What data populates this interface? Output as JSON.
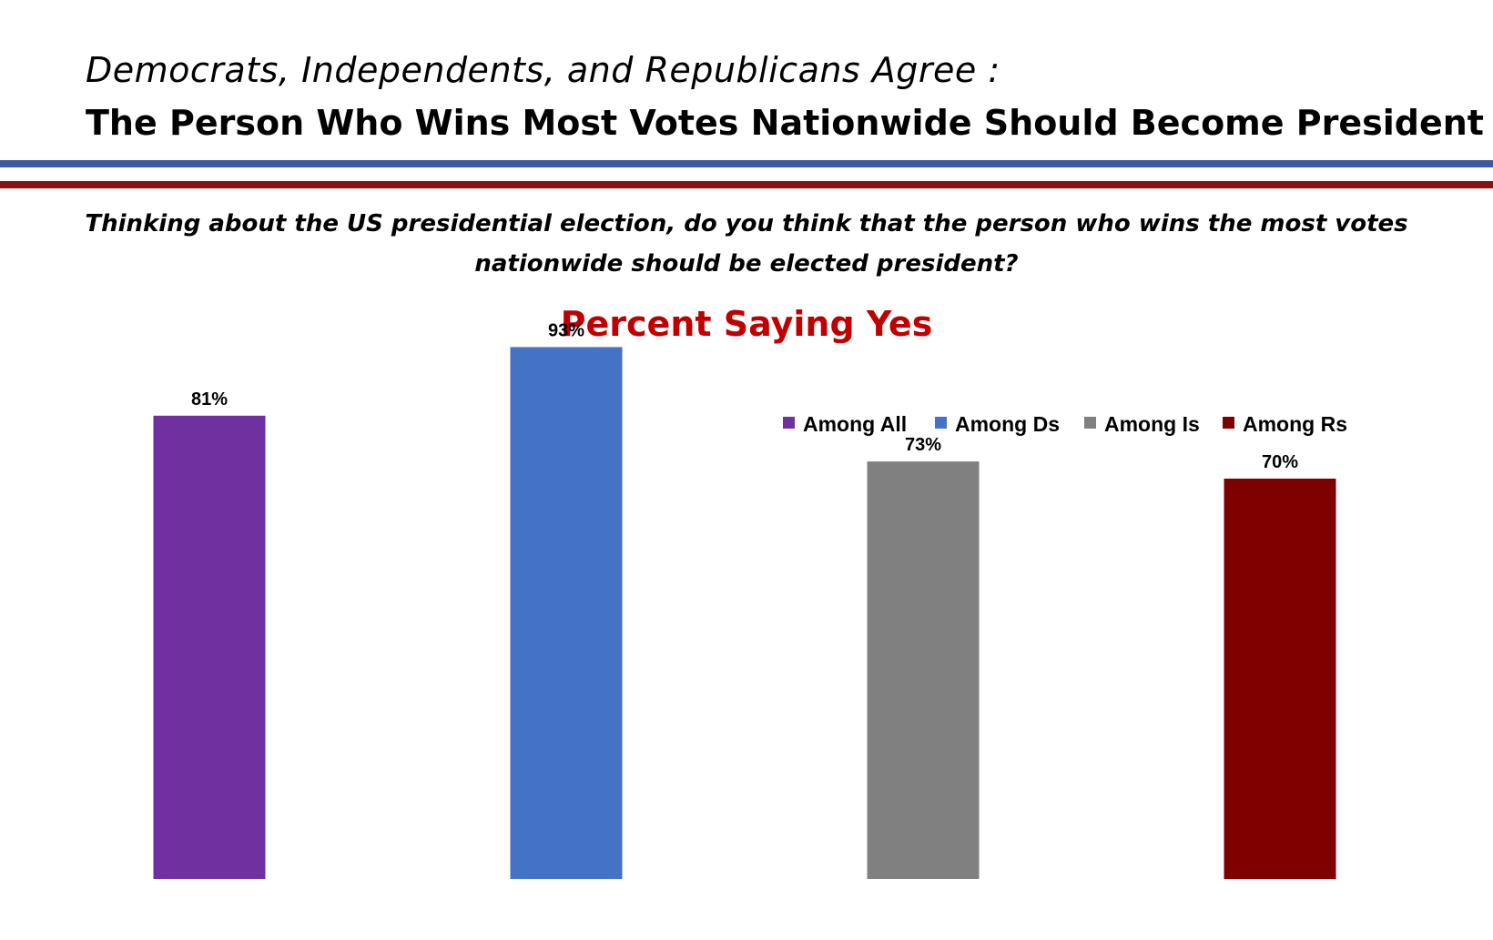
{
  "header": {
    "subtitle": "Democrats, Independents, and Republicans Agree :",
    "title": "The Person Who Wins Most Votes Nationwide Should Become President"
  },
  "question": "Thinking about the US presidential election, do you think that the person who wins the most votes nationwide should be elected president?",
  "colors": {
    "rule_blue": "#3b5aa0",
    "rule_red": "#8b1010",
    "chart_title": "#c00000"
  },
  "chart_data": {
    "type": "bar",
    "title": "Percent Saying Yes",
    "categories": [
      "Among All",
      "Among Ds",
      "Among Is",
      "Among Rs"
    ],
    "values": [
      81,
      93,
      73,
      70
    ],
    "value_labels": [
      "81%",
      "93%",
      "73%",
      "70%"
    ],
    "colors": [
      "#7030a0",
      "#4472c4",
      "#808080",
      "#800000"
    ],
    "ylim": [
      0,
      100
    ],
    "xlabel": "",
    "ylabel": "",
    "grid": false,
    "legend": "top-right"
  }
}
